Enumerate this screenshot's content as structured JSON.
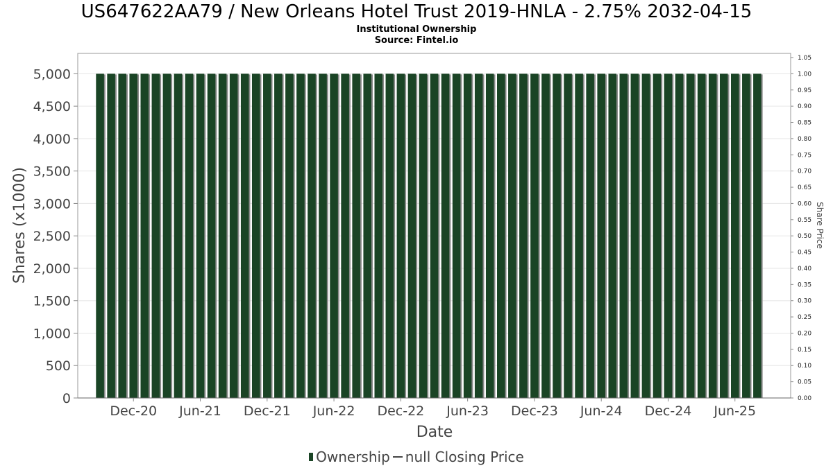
{
  "title": "US647622AA79 / New Orleans Hotel Trust 2019-HNLA - 2.75% 2032-04-15",
  "subtitle": "Institutional Ownership",
  "source": "Source: Fintel.io",
  "legend": {
    "ownership": "Ownership",
    "price": "null Closing Price"
  },
  "colors": {
    "bar": "#1a4425",
    "bar_shadow": "#8a8a8a",
    "grid": "#e6e6e6",
    "axis": "#888888"
  },
  "chart_data": {
    "type": "bar",
    "title": "US647622AA79 / New Orleans Hotel Trust 2019-HNLA - 2.75% 2032-04-15",
    "subtitle": "Institutional Ownership",
    "xlabel": "Date",
    "ylabel": "Shares (x1000)",
    "y2label": "Share Price",
    "ylim": [
      0,
      5250
    ],
    "y2lim": [
      0,
      1.05
    ],
    "yticks": [
      "0",
      "500",
      "1,000",
      "1,500",
      "2,000",
      "2,500",
      "3,000",
      "3,500",
      "4,000",
      "4,500",
      "5,000"
    ],
    "y2ticks": [
      "0.00",
      "0.05",
      "0.10",
      "0.15",
      "0.20",
      "0.25",
      "0.30",
      "0.35",
      "0.40",
      "0.45",
      "0.50",
      "0.55",
      "0.60",
      "0.65",
      "0.70",
      "0.75",
      "0.80",
      "0.85",
      "0.90",
      "0.95",
      "1.00",
      "1.05"
    ],
    "xticks": [
      "Dec-20",
      "Jun-21",
      "Dec-21",
      "Jun-22",
      "Dec-22",
      "Jun-23",
      "Dec-23",
      "Jun-24",
      "Dec-24",
      "Jun-25"
    ],
    "x_range": [
      "2020-07",
      "2025-11"
    ],
    "series": [
      {
        "name": "Ownership",
        "x_start": "2020-09",
        "interval": "month",
        "values": [
          5000,
          5000,
          5000,
          5000,
          5000,
          5000,
          5000,
          5000,
          5000,
          5000,
          5000,
          5000,
          5000,
          5000,
          5000,
          5000,
          5000,
          5000,
          5000,
          5000,
          5000,
          5000,
          5000,
          5000,
          5000,
          5000,
          5000,
          5000,
          5000,
          5000,
          5000,
          5000,
          5000,
          5000,
          5000,
          5000,
          5000,
          5000,
          5000,
          5000,
          5000,
          5000,
          5000,
          5000,
          5000,
          5000,
          5000,
          5000,
          5000,
          5000,
          5000,
          5000,
          5000,
          5000,
          5000,
          5000,
          5000,
          5000,
          5000,
          5000
        ]
      }
    ],
    "grid": true,
    "legend_position": "bottom"
  }
}
